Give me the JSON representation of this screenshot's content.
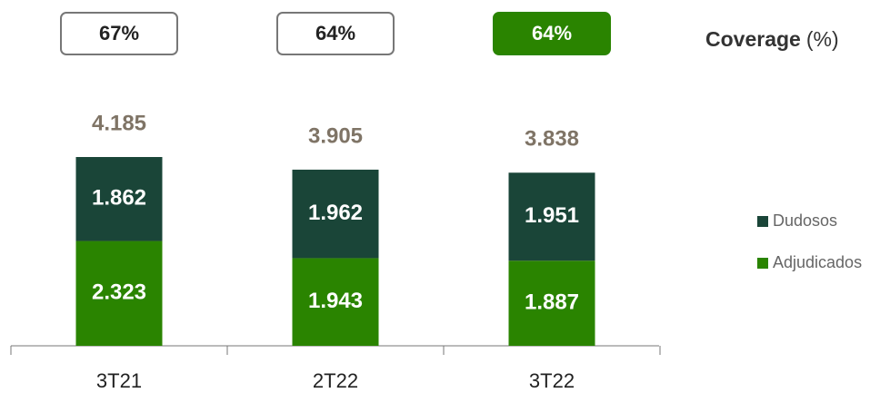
{
  "chart_data": {
    "type": "stacked_bar",
    "categories": [
      "3T21",
      "2T22",
      "3T22"
    ],
    "series": [
      {
        "name": "Adjudicados",
        "color": "#2a8400",
        "values": [
          2323,
          1943,
          1887
        ],
        "value_labels": [
          "2.323",
          "1.943",
          "1.887"
        ]
      },
      {
        "name": "Dudosos",
        "color": "#1a4538",
        "values": [
          1862,
          1962,
          1951
        ],
        "value_labels": [
          "1.862",
          "1.962",
          "1.951"
        ]
      }
    ],
    "totals": {
      "values": [
        4185,
        3905,
        3838
      ],
      "value_labels": [
        "4.185",
        "3.905",
        "3.838"
      ],
      "color": "#7f7466"
    },
    "coverage": {
      "title": "Coverage",
      "unit": "(%)",
      "values": [
        67,
        64,
        64
      ],
      "value_labels": [
        "67%",
        "64%",
        "64%"
      ],
      "highlight": [
        false,
        false,
        true
      ],
      "highlight_color": "#2a8400"
    },
    "legend": "right"
  }
}
